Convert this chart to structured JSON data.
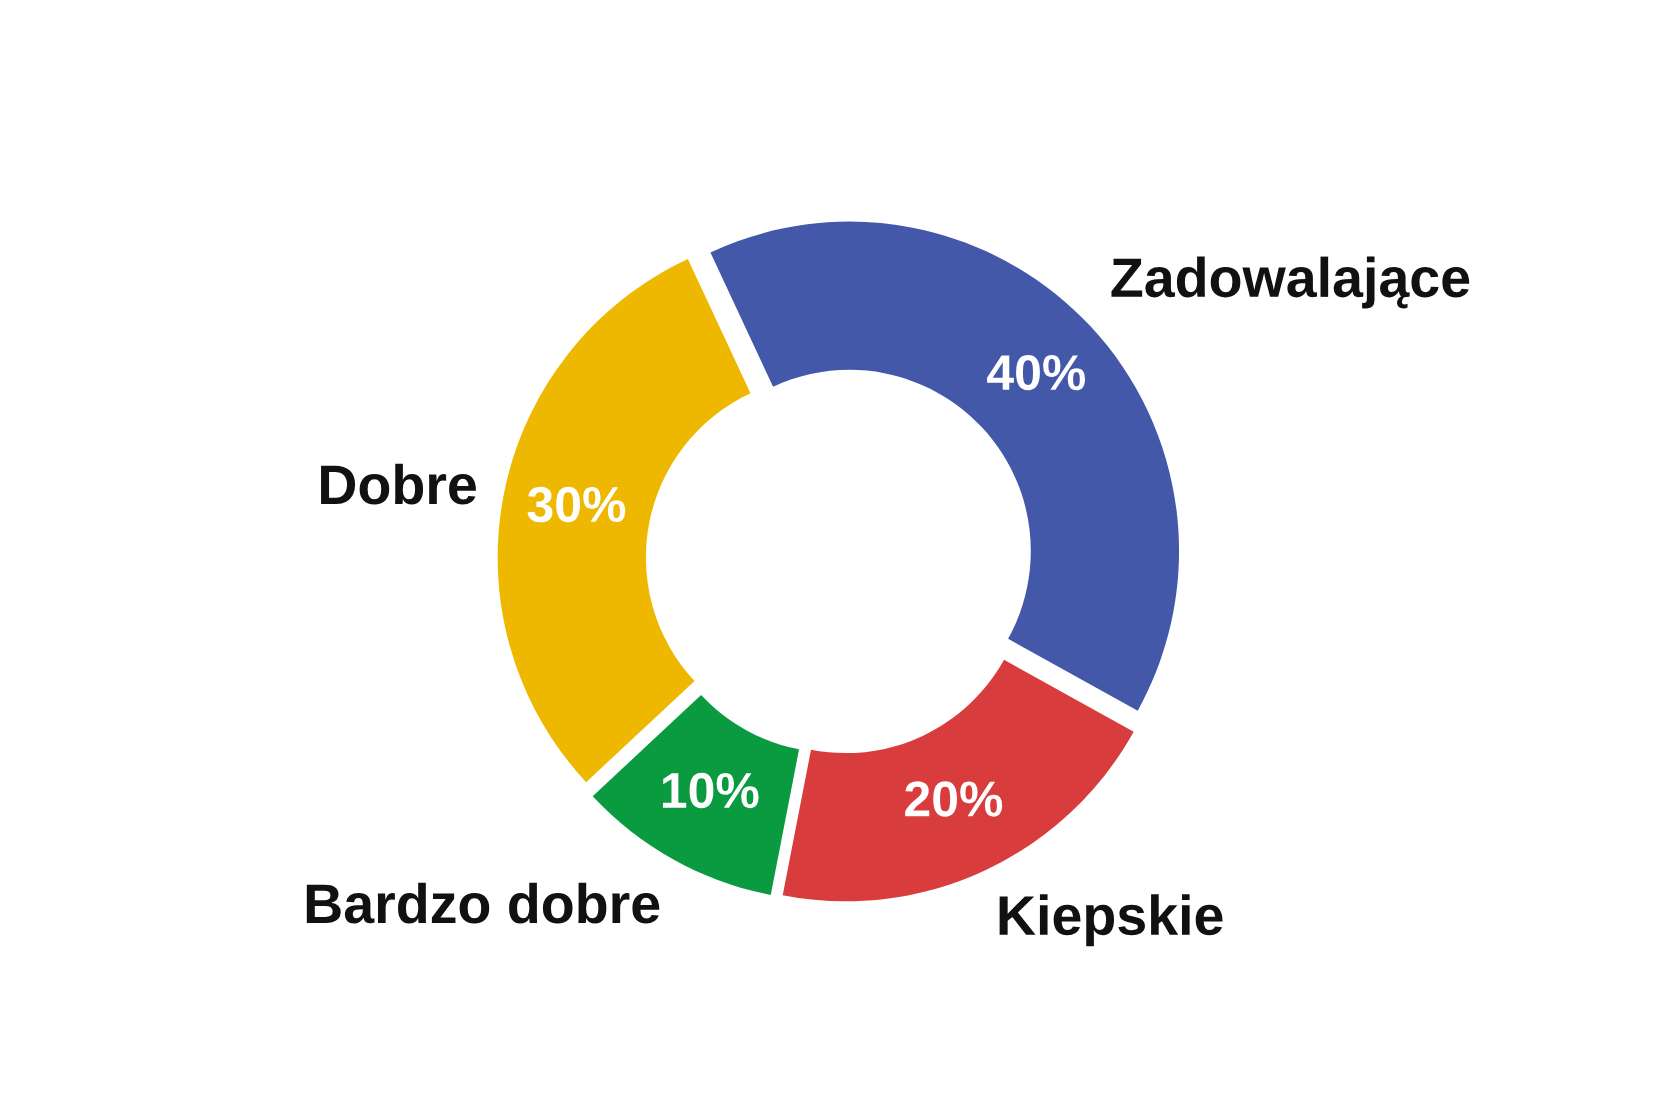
{
  "chart_data": {
    "type": "donut",
    "categories": [
      "Zadowalające",
      "Kiepskie",
      "Bardzo dobre",
      "Dobre"
    ],
    "values": [
      40,
      20,
      10,
      30
    ],
    "colors": [
      "#4358a8",
      "#d83c3c",
      "#0a9a40",
      "#eeb800"
    ],
    "value_labels": [
      "40%",
      "20%",
      "10%",
      "30%"
    ]
  }
}
